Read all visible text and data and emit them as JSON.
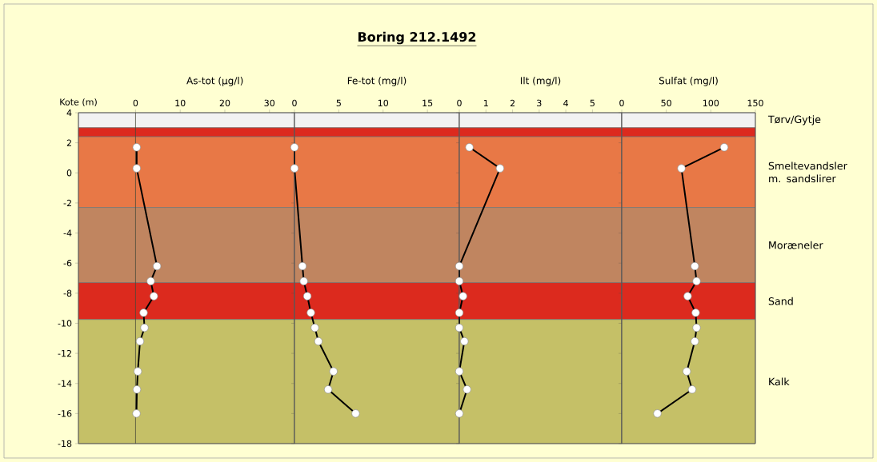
{
  "chart_data": [
    {
      "type": "line",
      "xlabel": "As-tot (µg/l)",
      "ylabel": "Kote (m)",
      "xlim": [
        -12.8,
        35.6
      ],
      "xticks": [
        0,
        10,
        20,
        30
      ],
      "ylim": [
        -18,
        4
      ],
      "yticks": [
        -18,
        -16,
        -14,
        -12,
        -10,
        -8,
        -6,
        -4,
        -2,
        0,
        2,
        4
      ],
      "marker": "circle",
      "line_style": "solid",
      "series": [
        {
          "color": "#000000",
          "x": [
            0.25,
            0.25,
            4.8,
            3.4,
            4.1,
            1.8,
            2.0,
            1.0,
            0.5,
            0.3,
            0.2
          ],
          "values": [
            1.7,
            0.3,
            -6.2,
            -7.2,
            -8.2,
            -9.3,
            -10.3,
            -11.2,
            -13.2,
            -14.4,
            -16.0
          ]
        }
      ],
      "ref_lines": [
        {
          "axis": "x",
          "value": 0,
          "color": "#4a4a3a"
        }
      ],
      "bands": [
        {
          "axis": "y",
          "from": 3.0,
          "to": 4,
          "color": "#f2f2f2"
        },
        {
          "axis": "y",
          "from": 2.4,
          "to": 3.0,
          "color": "#dc2a1e"
        },
        {
          "axis": "y",
          "from": -2.3,
          "to": 2.4,
          "color": "#e87846"
        },
        {
          "axis": "y",
          "from": -7.3,
          "to": -2.3,
          "color": "#c08560"
        },
        {
          "axis": "y",
          "from": -9.75,
          "to": -7.3,
          "color": "#dc2a1e"
        },
        {
          "axis": "y",
          "from": -18,
          "to": -9.75,
          "color": "#c5c067"
        }
      ]
    },
    {
      "type": "line",
      "title": "Boring 212.1492",
      "xlabel": "Fe-tot (mg/l)",
      "xlim": [
        0,
        18.6
      ],
      "xticks": [
        0,
        5,
        10,
        15
      ],
      "ylim": [
        -18,
        4
      ],
      "yticks": [
        -18,
        -16,
        -14,
        -12,
        -10,
        -8,
        -6,
        -4,
        -2,
        0,
        2,
        4
      ],
      "tick_labels": "x",
      "marker": "circle",
      "line_style": "solid",
      "series": [
        {
          "color": "#000000",
          "x": [
            0,
            0,
            0.9,
            1.05,
            1.45,
            1.85,
            2.3,
            2.7,
            4.4,
            3.8,
            6.9
          ],
          "values": [
            1.7,
            0.3,
            -6.2,
            -7.2,
            -8.2,
            -9.3,
            -10.3,
            -11.2,
            -13.2,
            -14.4,
            -16.0
          ]
        }
      ],
      "bands": [
        {
          "axis": "y",
          "from": 3.0,
          "to": 4,
          "color": "#f2f2f2"
        },
        {
          "axis": "y",
          "from": 2.4,
          "to": 3.0,
          "color": "#dc2a1e"
        },
        {
          "axis": "y",
          "from": -2.3,
          "to": 2.4,
          "color": "#e87846"
        },
        {
          "axis": "y",
          "from": -7.3,
          "to": -2.3,
          "color": "#c08560"
        },
        {
          "axis": "y",
          "from": -9.75,
          "to": -7.3,
          "color": "#dc2a1e"
        },
        {
          "axis": "y",
          "from": -18,
          "to": -9.75,
          "color": "#c5c067"
        }
      ]
    },
    {
      "type": "line",
      "xlabel": "Ilt (mg/l)",
      "xlim": [
        0,
        6.1
      ],
      "xticks": [
        0,
        1,
        2,
        3,
        4,
        5
      ],
      "ylim": [
        -18,
        4
      ],
      "yticks": [
        -18,
        -16,
        -14,
        -12,
        -10,
        -8,
        -6,
        -4,
        -2,
        0,
        2,
        4
      ],
      "tick_labels": "x",
      "marker": "circle",
      "line_style": "solid",
      "series": [
        {
          "color": "#000000",
          "x": [
            0.38,
            1.53,
            0,
            0,
            0.14,
            0,
            0,
            0.19,
            0,
            0.29,
            0
          ],
          "values": [
            1.7,
            0.3,
            -6.2,
            -7.2,
            -8.2,
            -9.3,
            -10.3,
            -11.2,
            -13.2,
            -14.4,
            -16.0
          ]
        }
      ],
      "bands": [
        {
          "axis": "y",
          "from": 3.0,
          "to": 4,
          "color": "#f2f2f2"
        },
        {
          "axis": "y",
          "from": 2.4,
          "to": 3.0,
          "color": "#dc2a1e"
        },
        {
          "axis": "y",
          "from": -2.3,
          "to": 2.4,
          "color": "#e87846"
        },
        {
          "axis": "y",
          "from": -7.3,
          "to": -2.3,
          "color": "#c08560"
        },
        {
          "axis": "y",
          "from": -9.75,
          "to": -7.3,
          "color": "#dc2a1e"
        },
        {
          "axis": "y",
          "from": -18,
          "to": -9.75,
          "color": "#c5c067"
        }
      ]
    },
    {
      "type": "line",
      "xlabel": "Sulfat (mg/l)",
      "xlim": [
        0,
        150
      ],
      "xticks": [
        0,
        50,
        100,
        150
      ],
      "ylim": [
        -18,
        4
      ],
      "yticks": [
        -18,
        -16,
        -14,
        -12,
        -10,
        -8,
        -6,
        -4,
        -2,
        0,
        2,
        4
      ],
      "tick_labels": "x",
      "marker": "circle",
      "line_style": "solid",
      "series": [
        {
          "color": "#000000",
          "x": [
            115,
            67,
            82,
            84,
            74,
            83,
            84,
            82,
            73,
            79,
            40
          ],
          "values": [
            1.7,
            0.3,
            -6.2,
            -7.2,
            -8.2,
            -9.3,
            -10.3,
            -11.2,
            -13.2,
            -14.4,
            -16.0
          ]
        }
      ],
      "bands": [
        {
          "axis": "y",
          "from": 3.0,
          "to": 4,
          "color": "#f2f2f2",
          "label": "Tørv/Gytje"
        },
        {
          "axis": "y",
          "from": 2.4,
          "to": 3.0,
          "color": "#dc2a1e"
        },
        {
          "axis": "y",
          "from": -2.3,
          "to": 2.4,
          "color": "#e87846",
          "label": "Smeltevandsler m. sandslirer"
        },
        {
          "axis": "y",
          "from": -7.3,
          "to": -2.3,
          "color": "#c08560",
          "label": "Moræneler"
        },
        {
          "axis": "y",
          "from": -9.75,
          "to": -7.3,
          "color": "#dc2a1e",
          "label": "Sand"
        },
        {
          "axis": "y",
          "from": -18,
          "to": -9.75,
          "color": "#c5c067",
          "label": "Kalk"
        }
      ]
    }
  ]
}
